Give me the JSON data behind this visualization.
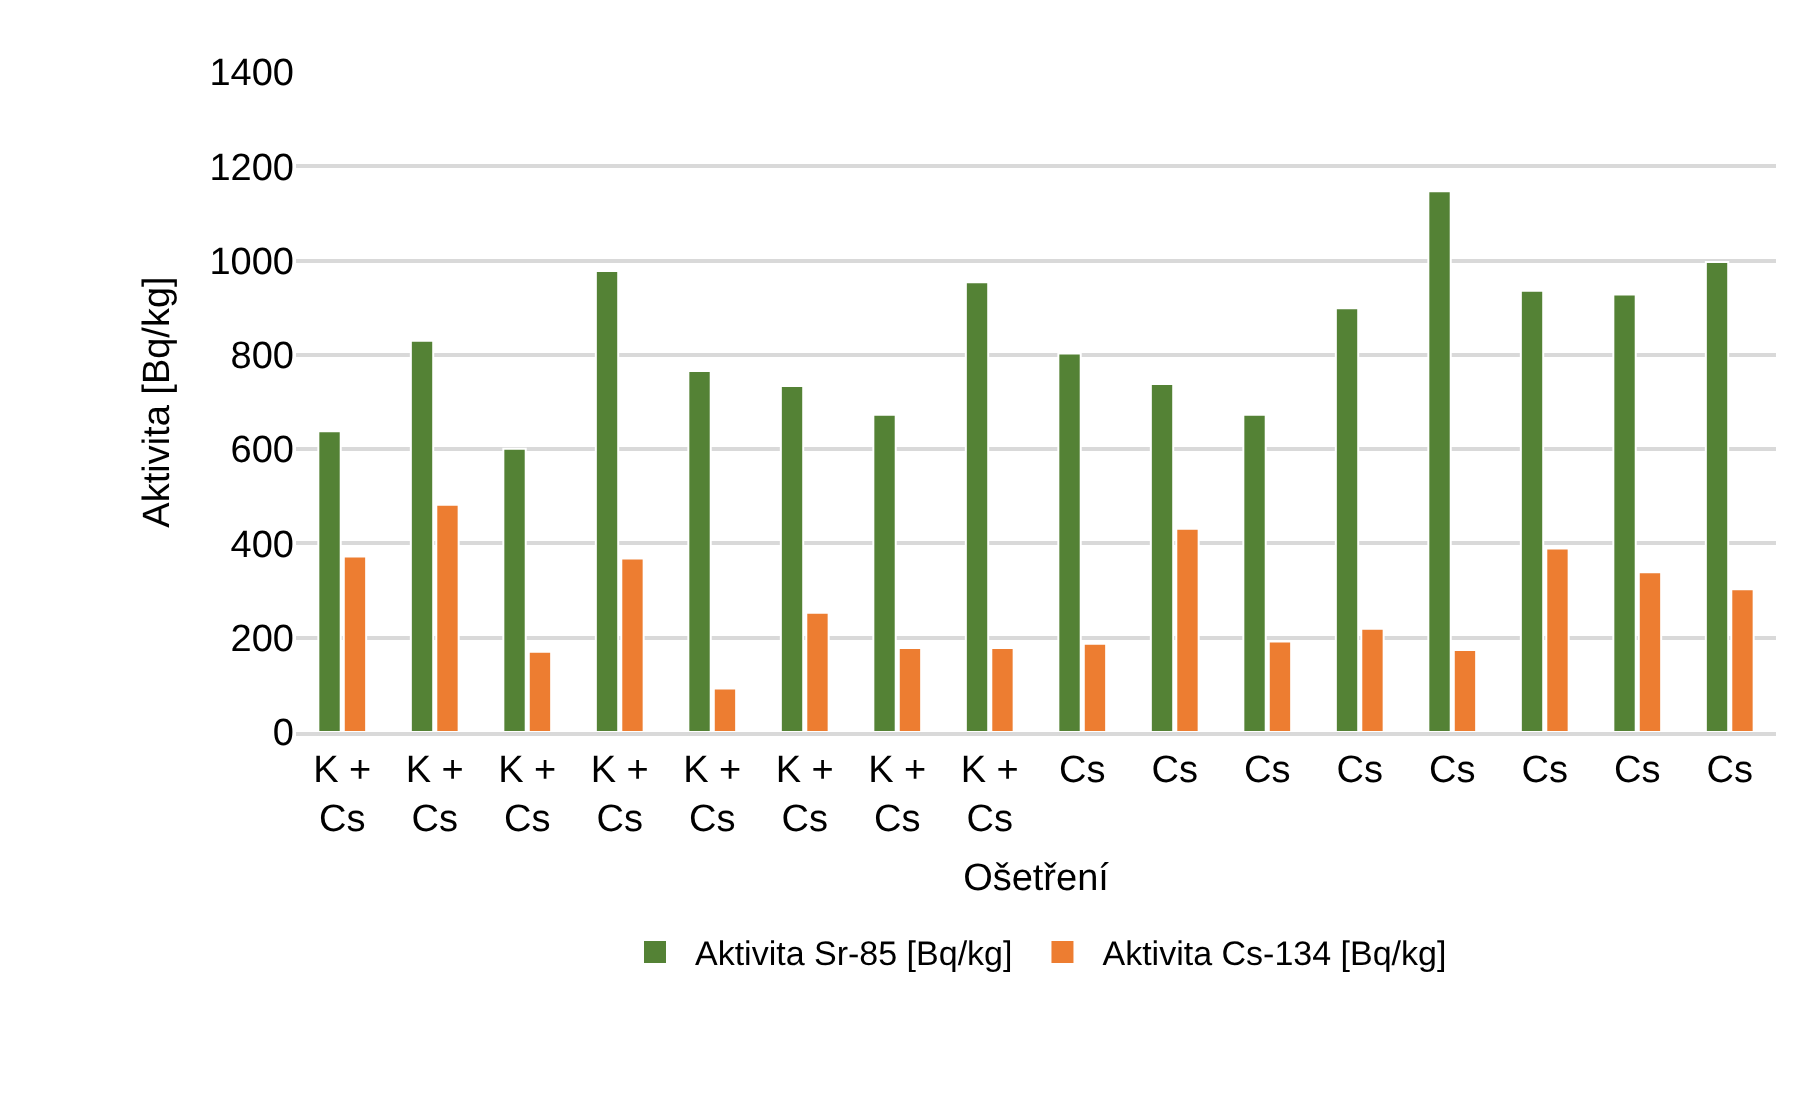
{
  "chart_data": {
    "type": "bar",
    "xlabel": "Ošetření",
    "ylabel": "Aktivita [Bq/kg]",
    "categories": [
      "K + Cs",
      "K + Cs",
      "K + Cs",
      "K + Cs",
      "K + Cs",
      "K + Cs",
      "K + Cs",
      "K + Cs",
      "Cs",
      "Cs",
      "Cs",
      "Cs",
      "Cs",
      "Cs",
      "Cs",
      "Cs"
    ],
    "series": [
      {
        "name": "Aktivita Sr-85 [Bq/kg]",
        "color": "#548235",
        "values": [
          638,
          830,
          601,
          978,
          766,
          734,
          673,
          954,
          803,
          738,
          673,
          899,
          1147,
          936,
          928,
          997
        ]
      },
      {
        "name": "Aktivita Cs-134 [Bq/kg]",
        "color": "#ed7d31",
        "values": [
          372,
          482,
          170,
          368,
          92,
          253,
          178,
          178,
          187,
          431,
          192,
          219,
          174,
          389,
          339,
          303
        ]
      }
    ],
    "ylim": [
      0,
      1400
    ],
    "yticks": [
      0,
      200,
      400,
      600,
      800,
      1000,
      1200,
      1400
    ],
    "grid": "y",
    "legend": "bottom"
  }
}
